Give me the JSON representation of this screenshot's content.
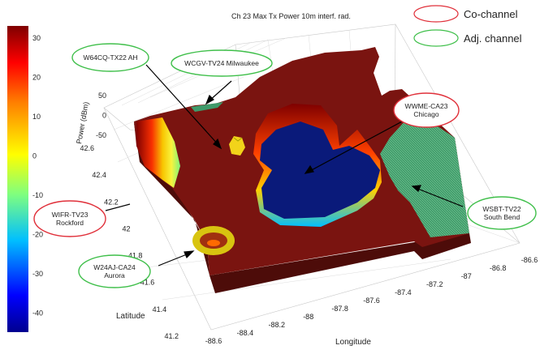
{
  "chart_data": {
    "type": "3d-surface",
    "title": "Ch 23 Max Tx Power 10m interf. rad.",
    "zlabel": "Power (dBm)",
    "xlabel": "Longitude",
    "ylabel": "Latitude",
    "x_ticks": [
      "-88.6",
      "-88.4",
      "-88.2",
      "-88",
      "-87.8",
      "-87.6",
      "-87.4",
      "-87.2",
      "-87",
      "-86.8",
      "-86.6"
    ],
    "y_ticks": [
      "41.2",
      "41.4",
      "41.6",
      "41.8",
      "42",
      "42.2",
      "42.4",
      "42.6"
    ],
    "z_ticks": [
      "50",
      "0",
      "-50"
    ],
    "colorbar": {
      "ticks": [
        "30",
        "20",
        "10",
        "0",
        "-10",
        "-20",
        "-30",
        "-40"
      ],
      "values": [
        30,
        20,
        10,
        0,
        -10,
        -20,
        -30,
        -40
      ],
      "range": [
        -45,
        33
      ]
    },
    "legend": [
      {
        "label": "Co-channel",
        "color": "#e0303a"
      },
      {
        "label": "Adj. channel",
        "color": "#3fbf4a"
      }
    ],
    "stations": [
      {
        "name": "W64CQ-TX22 AH",
        "type": "adj"
      },
      {
        "name": "WCGV-TV24 Milwaukee",
        "type": "adj"
      },
      {
        "name": "WWME-CA23\nChicago",
        "type": "co"
      },
      {
        "name": "WIFR-TV23\nRockford",
        "type": "co"
      },
      {
        "name": "WSBT-TV22\nSouth Bend",
        "type": "adj"
      },
      {
        "name": "W24AJ-CA24\nAurora",
        "type": "adj"
      }
    ]
  },
  "colors": {
    "surface": "#7a1410",
    "surface_dark": "#5a0e0b",
    "hole": "#0a1a7a",
    "green_region": "#3f9a6a"
  }
}
